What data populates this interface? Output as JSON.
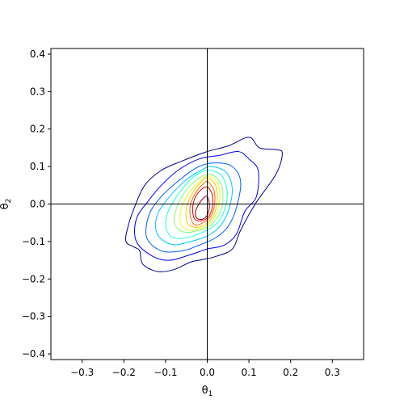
{
  "chart_data": {
    "type": "contour",
    "xlabel": "θ",
    "xlabel_sub": "1",
    "ylabel": "θ",
    "ylabel_sub": "2",
    "xlim": [
      -0.375,
      0.375
    ],
    "ylim": [
      -0.415,
      0.415
    ],
    "xticks": [
      -0.3,
      -0.2,
      -0.1,
      0.0,
      0.1,
      0.2,
      0.3
    ],
    "xtick_labels": [
      "−0.3",
      "−0.2",
      "−0.1",
      "0.0",
      "0.1",
      "0.2",
      "0.3"
    ],
    "yticks": [
      -0.4,
      -0.3,
      -0.2,
      -0.1,
      0.0,
      0.1,
      0.2,
      0.3,
      0.4
    ],
    "ytick_labels": [
      "−0.4",
      "−0.3",
      "−0.2",
      "−0.1",
      "0.0",
      "0.1",
      "0.2",
      "0.3",
      "0.4"
    ],
    "reference_lines": {
      "x": 0.0,
      "y": 0.0,
      "color": "#000000"
    },
    "grid": false,
    "colormap": "jet",
    "contours": [
      {
        "level": 1,
        "color": "#00008f",
        "points": [
          [
            0.1,
            0.178
          ],
          [
            0.125,
            0.15
          ],
          [
            0.165,
            0.145
          ],
          [
            0.18,
            0.135
          ],
          [
            0.165,
            0.08
          ],
          [
            0.115,
            0.0
          ],
          [
            0.08,
            -0.07
          ],
          [
            0.06,
            -0.12
          ],
          [
            0.02,
            -0.14
          ],
          [
            -0.01,
            -0.148
          ],
          [
            -0.04,
            -0.155
          ],
          [
            -0.08,
            -0.175
          ],
          [
            -0.12,
            -0.18
          ],
          [
            -0.155,
            -0.16
          ],
          [
            -0.162,
            -0.125
          ],
          [
            -0.175,
            -0.115
          ],
          [
            -0.195,
            -0.1
          ],
          [
            -0.19,
            -0.06
          ],
          [
            -0.175,
            -0.01
          ],
          [
            -0.15,
            0.05
          ],
          [
            -0.11,
            0.09
          ],
          [
            -0.06,
            0.115
          ],
          [
            0.0,
            0.14
          ],
          [
            0.05,
            0.155
          ]
        ]
      },
      {
        "level": 2,
        "color": "#0000ff",
        "points": [
          [
            0.03,
            0.13
          ],
          [
            0.075,
            0.14
          ],
          [
            0.1,
            0.12
          ],
          [
            0.122,
            0.09
          ],
          [
            0.118,
            0.02
          ],
          [
            0.09,
            -0.02
          ],
          [
            0.07,
            -0.08
          ],
          [
            0.04,
            -0.11
          ],
          [
            0.0,
            -0.12
          ],
          [
            -0.04,
            -0.135
          ],
          [
            -0.09,
            -0.15
          ],
          [
            -0.13,
            -0.14
          ],
          [
            -0.17,
            -0.1
          ],
          [
            -0.17,
            -0.04
          ],
          [
            -0.14,
            0.01
          ],
          [
            -0.11,
            0.05
          ],
          [
            -0.07,
            0.09
          ],
          [
            -0.02,
            0.12
          ]
        ]
      },
      {
        "level": 3,
        "color": "#0060ff",
        "points": [
          [
            0.02,
            0.11
          ],
          [
            0.06,
            0.1
          ],
          [
            0.08,
            0.06
          ],
          [
            0.07,
            -0.01
          ],
          [
            0.05,
            -0.06
          ],
          [
            0.02,
            -0.09
          ],
          [
            -0.02,
            -0.11
          ],
          [
            -0.06,
            -0.125
          ],
          [
            -0.11,
            -0.125
          ],
          [
            -0.145,
            -0.09
          ],
          [
            -0.14,
            -0.03
          ],
          [
            -0.11,
            0.02
          ],
          [
            -0.06,
            0.07
          ],
          [
            -0.02,
            0.1
          ]
        ]
      },
      {
        "level": 4,
        "color": "#00c8ff",
        "points": [
          [
            0.01,
            0.1
          ],
          [
            0.045,
            0.085
          ],
          [
            0.06,
            0.04
          ],
          [
            0.05,
            -0.02
          ],
          [
            0.03,
            -0.06
          ],
          [
            0.0,
            -0.085
          ],
          [
            -0.04,
            -0.1
          ],
          [
            -0.085,
            -0.108
          ],
          [
            -0.12,
            -0.08
          ],
          [
            -0.12,
            -0.03
          ],
          [
            -0.09,
            0.02
          ],
          [
            -0.05,
            0.065
          ],
          [
            -0.015,
            0.09
          ]
        ]
      },
      {
        "level": 5,
        "color": "#20ffd8",
        "points": [
          [
            0.005,
            0.09
          ],
          [
            0.035,
            0.075
          ],
          [
            0.048,
            0.03
          ],
          [
            0.04,
            -0.02
          ],
          [
            0.02,
            -0.055
          ],
          [
            -0.01,
            -0.075
          ],
          [
            -0.05,
            -0.09
          ],
          [
            -0.085,
            -0.088
          ],
          [
            -0.1,
            -0.055
          ],
          [
            -0.09,
            -0.01
          ],
          [
            -0.06,
            0.04
          ],
          [
            -0.03,
            0.075
          ]
        ]
      },
      {
        "level": 6,
        "color": "#7fff80",
        "points": [
          [
            0.005,
            0.08
          ],
          [
            0.03,
            0.06
          ],
          [
            0.038,
            0.02
          ],
          [
            0.03,
            -0.025
          ],
          [
            0.01,
            -0.055
          ],
          [
            -0.02,
            -0.07
          ],
          [
            -0.055,
            -0.075
          ],
          [
            -0.078,
            -0.055
          ],
          [
            -0.075,
            -0.015
          ],
          [
            -0.055,
            0.03
          ],
          [
            -0.025,
            0.065
          ]
        ]
      },
      {
        "level": 7,
        "color": "#dfff20",
        "points": [
          [
            0.003,
            0.075
          ],
          [
            0.025,
            0.055
          ],
          [
            0.03,
            0.015
          ],
          [
            0.022,
            -0.025
          ],
          [
            0.002,
            -0.055
          ],
          [
            -0.025,
            -0.068
          ],
          [
            -0.05,
            -0.068
          ],
          [
            -0.065,
            -0.045
          ],
          [
            -0.06,
            -0.005
          ],
          [
            -0.04,
            0.035
          ],
          [
            -0.015,
            0.063
          ]
        ]
      },
      {
        "level": 8,
        "color": "#ffc800",
        "points": [
          [
            0.0,
            0.07
          ],
          [
            0.02,
            0.05
          ],
          [
            0.024,
            0.01
          ],
          [
            0.015,
            -0.03
          ],
          [
            -0.005,
            -0.055
          ],
          [
            -0.03,
            -0.062
          ],
          [
            -0.048,
            -0.05
          ],
          [
            -0.05,
            -0.01
          ],
          [
            -0.035,
            0.03
          ],
          [
            -0.015,
            0.058
          ]
        ]
      },
      {
        "level": 9,
        "color": "#ff6a00",
        "points": [
          [
            0.0,
            0.06
          ],
          [
            0.015,
            0.04
          ],
          [
            0.018,
            0.005
          ],
          [
            0.01,
            -0.03
          ],
          [
            -0.01,
            -0.05
          ],
          [
            -0.03,
            -0.055
          ],
          [
            -0.04,
            -0.035
          ],
          [
            -0.04,
            0.0
          ],
          [
            -0.025,
            0.035
          ],
          [
            -0.01,
            0.053
          ]
        ]
      },
      {
        "level": 10,
        "color": "#e80000",
        "points": [
          [
            0.0,
            0.045
          ],
          [
            0.012,
            0.025
          ],
          [
            0.012,
            -0.01
          ],
          [
            0.002,
            -0.035
          ],
          [
            -0.015,
            -0.045
          ],
          [
            -0.03,
            -0.04
          ],
          [
            -0.035,
            -0.015
          ],
          [
            -0.03,
            0.015
          ],
          [
            -0.015,
            0.038
          ]
        ]
      },
      {
        "level": 11,
        "color": "#8a0000",
        "points": [
          [
            0.0,
            0.02
          ],
          [
            0.005,
            0.0
          ],
          [
            0.002,
            -0.025
          ],
          [
            -0.01,
            -0.04
          ],
          [
            -0.025,
            -0.038
          ],
          [
            -0.028,
            -0.02
          ],
          [
            -0.02,
            0.0
          ],
          [
            -0.008,
            0.017
          ]
        ]
      }
    ]
  }
}
